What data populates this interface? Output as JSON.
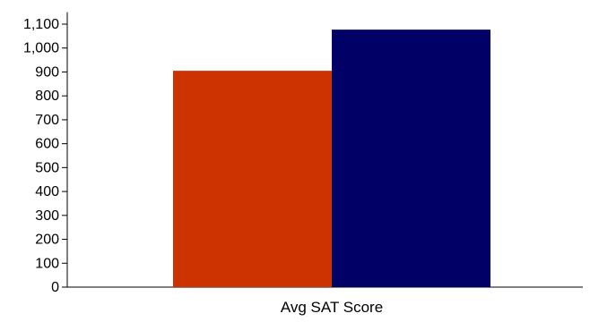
{
  "chart_data": {
    "type": "bar",
    "categories": [
      "Avg SAT Score"
    ],
    "series": [
      {
        "values": [
          905
        ],
        "color": "#cc3300"
      },
      {
        "values": [
          1077
        ],
        "color": "#000066"
      }
    ],
    "ylim": [
      0,
      1150
    ],
    "yticks": [
      0,
      100,
      200,
      300,
      400,
      500,
      600,
      700,
      800,
      900,
      1000,
      1100
    ],
    "ytick_labels": [
      "0",
      "100",
      "200",
      "300",
      "400",
      "500",
      "600",
      "700",
      "800",
      "900",
      "1,000",
      "1,100"
    ],
    "grid": false,
    "legend": "none"
  }
}
